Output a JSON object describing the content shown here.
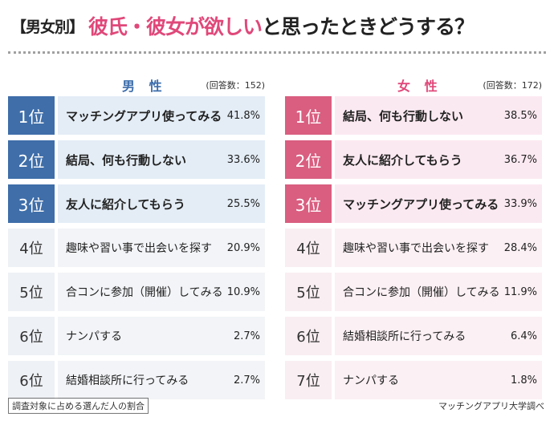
{
  "title": {
    "tag": "【男女別】",
    "accent": "彼氏・彼女が欲しい",
    "rest": "と思ったときどうする？"
  },
  "footnote": "調査対象に占める選んだ人の割合",
  "source": "マッチングアプリ大学調べ",
  "colors": {
    "male": "#3f6ea9",
    "female": "#d95e80",
    "title_accent": "#e0487a"
  },
  "chart_data": [
    {
      "type": "table",
      "group": "男 性",
      "respondents": "(回答数：152)",
      "rows": [
        {
          "rank": "1位",
          "label": "マッチングアプリ使ってみる",
          "value": 41.8,
          "display": "41.8%"
        },
        {
          "rank": "2位",
          "label": "結局、何も行動しない",
          "value": 33.6,
          "display": "33.6%"
        },
        {
          "rank": "3位",
          "label": "友人に紹介してもらう",
          "value": 25.5,
          "display": "25.5%"
        },
        {
          "rank": "4位",
          "label": "趣味や習い事で出会いを探す",
          "value": 20.9,
          "display": "20.9%"
        },
        {
          "rank": "5位",
          "label": "合コンに参加（開催）してみる",
          "value": 10.9,
          "display": "10.9%"
        },
        {
          "rank": "6位",
          "label": "ナンパする",
          "value": 2.7,
          "display": "2.7%"
        },
        {
          "rank": "6位",
          "label": "結婚相談所に行ってみる",
          "value": 2.7,
          "display": "2.7%"
        }
      ]
    },
    {
      "type": "table",
      "group": "女 性",
      "respondents": "(回答数：172)",
      "rows": [
        {
          "rank": "1位",
          "label": "結局、何も行動しない",
          "value": 38.5,
          "display": "38.5%"
        },
        {
          "rank": "2位",
          "label": "友人に紹介してもらう",
          "value": 36.7,
          "display": "36.7%"
        },
        {
          "rank": "3位",
          "label": "マッチングアプリ使ってみる",
          "value": 33.9,
          "display": "33.9%"
        },
        {
          "rank": "4位",
          "label": "趣味や習い事で出会いを探す",
          "value": 28.4,
          "display": "28.4%"
        },
        {
          "rank": "5位",
          "label": "合コンに参加（開催）してみる",
          "value": 11.9,
          "display": "11.9%"
        },
        {
          "rank": "6位",
          "label": "結婚相談所に行ってみる",
          "value": 6.4,
          "display": "6.4%"
        },
        {
          "rank": "7位",
          "label": "ナンパする",
          "value": 1.8,
          "display": "1.8%"
        }
      ]
    }
  ]
}
